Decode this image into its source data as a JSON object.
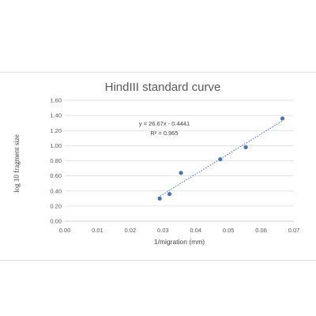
{
  "chart_data": {
    "type": "scatter",
    "title": "HindIII standard curve",
    "xlabel": "1/migration (mm)",
    "ylabel": "log 10 fragment size",
    "xlim": [
      0,
      0.07
    ],
    "ylim": [
      0,
      1.6
    ],
    "x_ticks": [
      "0.00",
      "0.01",
      "0.02",
      "0.03",
      "0.04",
      "0.05",
      "0.06",
      "0.07"
    ],
    "y_ticks": [
      "0.00",
      "0.20",
      "0.40",
      "0.60",
      "0.80",
      "1.00",
      "1.20",
      "1.40",
      "1.60"
    ],
    "grid": "horizontal",
    "legend": "none",
    "series": [
      {
        "points": [
          {
            "x": 0.029,
            "y": 0.3
          },
          {
            "x": 0.032,
            "y": 0.36
          },
          {
            "x": 0.0355,
            "y": 0.64
          },
          {
            "x": 0.0475,
            "y": 0.82
          },
          {
            "x": 0.0553,
            "y": 0.98
          },
          {
            "x": 0.0665,
            "y": 1.36
          }
        ],
        "color": "#4472c4"
      }
    ],
    "trendline": {
      "type": "linear",
      "slope": 26.67,
      "intercept": -0.4441,
      "equation": "y = 26.67x - 0.4441",
      "r_squared": "R² = 0.965",
      "x_range": [
        0.0285,
        0.0665
      ],
      "style": "dotted",
      "color": "#4472c4"
    }
  }
}
